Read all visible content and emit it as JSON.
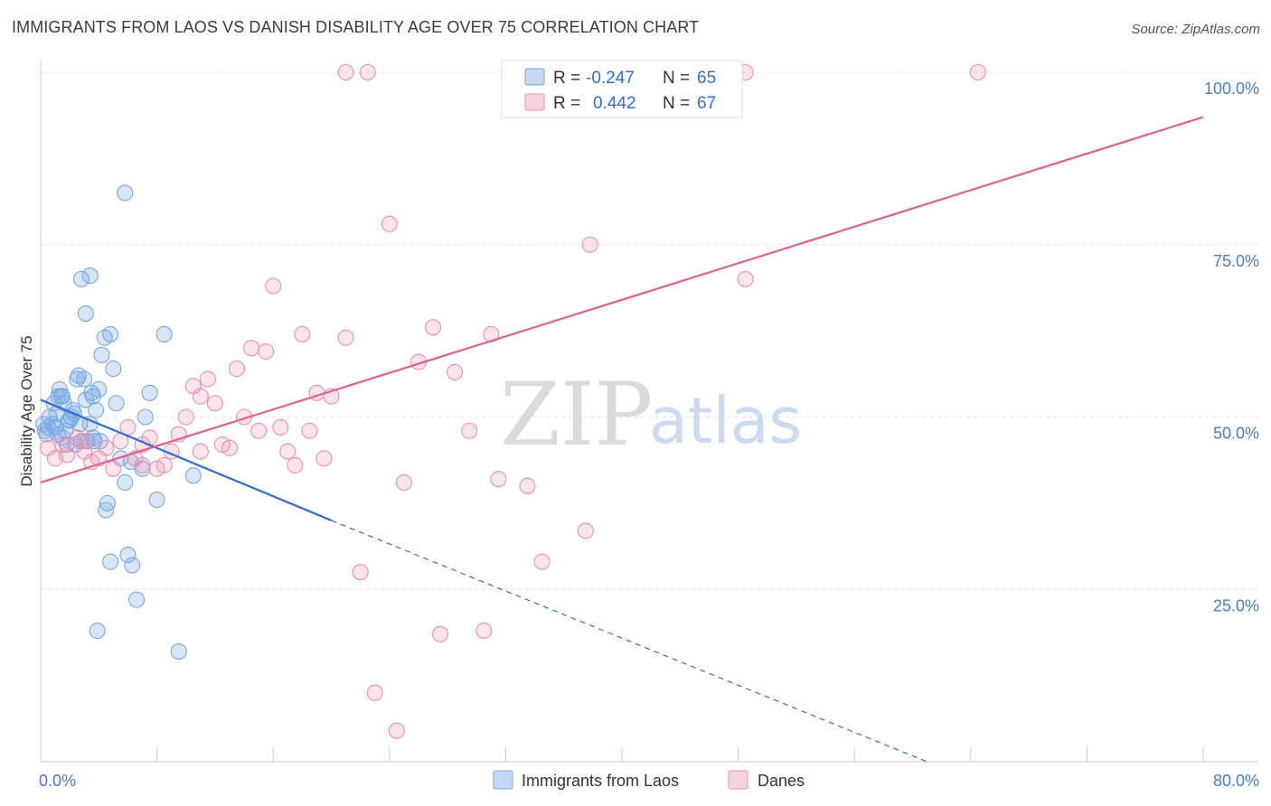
{
  "title": "IMMIGRANTS FROM LAOS VS DANISH DISABILITY AGE OVER 75 CORRELATION CHART",
  "source": "Source: ZipAtlas.com",
  "colors": {
    "blue": "#7aa9e6",
    "blue_fill": "rgba(122,169,230,0.30)",
    "blue_line": "#2f6fd6",
    "pink": "#ee8fae",
    "pink_fill": "rgba(238,143,174,0.25)",
    "pink_line": "#e0628c",
    "tick": "#4a7bd0"
  },
  "legend": {
    "r_label": "R =",
    "n_label": "N =",
    "rows": [
      {
        "r": "-0.247",
        "n": "65"
      },
      {
        "r": "0.442",
        "n": "67"
      }
    ]
  },
  "bottom_legend": [
    "Immigrants from Laos",
    "Danes"
  ],
  "watermark": {
    "zip": "ZIP",
    "atlas": "atlas"
  },
  "chart_data": {
    "type": "scatter",
    "title": "IMMIGRANTS FROM LAOS VS DANISH DISABILITY AGE OVER 75 CORRELATION CHART",
    "xlabel": "",
    "ylabel": "Disability Age Over 75",
    "xlim": [
      0,
      80
    ],
    "ylim": [
      0,
      100
    ],
    "x_ticks": [
      "0.0%",
      "80.0%"
    ],
    "y_ticks": [
      "25.0%",
      "50.0%",
      "75.0%",
      "100.0%"
    ],
    "grid": true,
    "legend_position": "top-center",
    "series": [
      {
        "name": "Immigrants from Laos",
        "R": -0.247,
        "N": 65,
        "trend": {
          "x0": 0,
          "y0": 52.5,
          "x1": 20,
          "y1": 35.0,
          "dashed_to": {
            "x": 61,
            "y": 0
          }
        },
        "points": [
          [
            0.3,
            48.0
          ],
          [
            0.5,
            48.5
          ],
          [
            0.6,
            50.0
          ],
          [
            0.8,
            49.0
          ],
          [
            1.0,
            48.5
          ],
          [
            1.1,
            50.5
          ],
          [
            1.2,
            47.5
          ],
          [
            1.3,
            54.0
          ],
          [
            1.4,
            53.0
          ],
          [
            1.5,
            53.0
          ],
          [
            1.6,
            52.0
          ],
          [
            1.8,
            46.0
          ],
          [
            1.9,
            49.5
          ],
          [
            2.0,
            49.5
          ],
          [
            2.2,
            51.0
          ],
          [
            2.3,
            50.5
          ],
          [
            2.5,
            55.5
          ],
          [
            2.6,
            56.0
          ],
          [
            2.7,
            49.0
          ],
          [
            2.8,
            46.5
          ],
          [
            3.0,
            55.5
          ],
          [
            3.1,
            52.5
          ],
          [
            3.2,
            46.5
          ],
          [
            3.4,
            49.0
          ],
          [
            3.5,
            53.5
          ],
          [
            3.6,
            53.0
          ],
          [
            3.7,
            46.5
          ],
          [
            3.8,
            51.0
          ],
          [
            4.0,
            54.0
          ],
          [
            4.2,
            59.0
          ],
          [
            4.4,
            61.5
          ],
          [
            4.5,
            36.5
          ],
          [
            4.6,
            37.5
          ],
          [
            4.8,
            62.0
          ],
          [
            5.0,
            57.0
          ],
          [
            5.2,
            52.0
          ],
          [
            5.5,
            44.0
          ],
          [
            5.8,
            40.5
          ],
          [
            6.0,
            30.0
          ],
          [
            6.3,
            28.5
          ],
          [
            6.6,
            23.5
          ],
          [
            7.0,
            42.5
          ],
          [
            7.2,
            50.0
          ],
          [
            7.5,
            53.5
          ],
          [
            8.0,
            38.0
          ],
          [
            8.5,
            62.0
          ],
          [
            9.5,
            16.0
          ],
          [
            10.5,
            41.5
          ],
          [
            2.8,
            70.0
          ],
          [
            3.4,
            70.5
          ],
          [
            3.1,
            65.0
          ],
          [
            5.8,
            82.5
          ],
          [
            3.9,
            19.0
          ],
          [
            4.8,
            29.0
          ],
          [
            0.4,
            47.5
          ],
          [
            1.5,
            47.0
          ],
          [
            2.1,
            50.0
          ],
          [
            3.6,
            47.0
          ],
          [
            4.1,
            46.5
          ],
          [
            6.2,
            43.5
          ],
          [
            0.9,
            52.0
          ],
          [
            1.7,
            48.0
          ],
          [
            2.4,
            46.0
          ],
          [
            0.2,
            49.0
          ],
          [
            1.2,
            53.0
          ]
        ]
      },
      {
        "name": "Danes",
        "R": 0.442,
        "N": 67,
        "trend": {
          "x0": 0,
          "y0": 40.5,
          "x1": 80,
          "y1": 93.5
        },
        "points": [
          [
            0.5,
            45.5
          ],
          [
            1.0,
            44.0
          ],
          [
            1.8,
            44.5
          ],
          [
            2.5,
            47.0
          ],
          [
            3.0,
            46.5
          ],
          [
            3.5,
            43.5
          ],
          [
            4.0,
            44.0
          ],
          [
            4.5,
            45.5
          ],
          [
            5.0,
            42.5
          ],
          [
            5.5,
            46.5
          ],
          [
            6.0,
            48.5
          ],
          [
            6.5,
            44.0
          ],
          [
            7.0,
            46.0
          ],
          [
            7.5,
            47.0
          ],
          [
            8.0,
            42.5
          ],
          [
            8.5,
            43.0
          ],
          [
            9.0,
            45.0
          ],
          [
            9.5,
            47.5
          ],
          [
            10.0,
            50.0
          ],
          [
            10.5,
            54.5
          ],
          [
            11.0,
            53.0
          ],
          [
            11.5,
            55.5
          ],
          [
            12.0,
            52.0
          ],
          [
            12.5,
            46.0
          ],
          [
            13.0,
            45.5
          ],
          [
            13.5,
            57.0
          ],
          [
            14.0,
            50.0
          ],
          [
            14.5,
            60.0
          ],
          [
            15.0,
            48.0
          ],
          [
            15.5,
            59.5
          ],
          [
            16.0,
            69.0
          ],
          [
            16.5,
            48.5
          ],
          [
            17.0,
            45.0
          ],
          [
            17.5,
            43.0
          ],
          [
            18.0,
            62.0
          ],
          [
            18.5,
            48.0
          ],
          [
            19.0,
            53.5
          ],
          [
            19.5,
            44.0
          ],
          [
            20.0,
            53.0
          ],
          [
            21.0,
            61.5
          ],
          [
            22.0,
            27.5
          ],
          [
            23.0,
            10.0
          ],
          [
            24.0,
            78.0
          ],
          [
            24.5,
            4.5
          ],
          [
            25.0,
            40.5
          ],
          [
            26.0,
            58.0
          ],
          [
            27.0,
            63.0
          ],
          [
            27.5,
            18.5
          ],
          [
            28.5,
            56.5
          ],
          [
            29.5,
            48.0
          ],
          [
            30.5,
            19.0
          ],
          [
            31.0,
            62.0
          ],
          [
            31.5,
            41.0
          ],
          [
            33.5,
            40.0
          ],
          [
            34.5,
            29.0
          ],
          [
            37.5,
            33.5
          ],
          [
            37.8,
            75.0
          ],
          [
            48.5,
            70.0
          ],
          [
            21.0,
            100.0
          ],
          [
            22.5,
            100.0
          ],
          [
            47.5,
            100.0
          ],
          [
            48.5,
            100.0
          ],
          [
            64.5,
            100.0
          ],
          [
            7.0,
            43.0
          ],
          [
            11.0,
            45.0
          ],
          [
            3.0,
            45.0
          ],
          [
            1.5,
            46.0
          ]
        ]
      }
    ]
  }
}
